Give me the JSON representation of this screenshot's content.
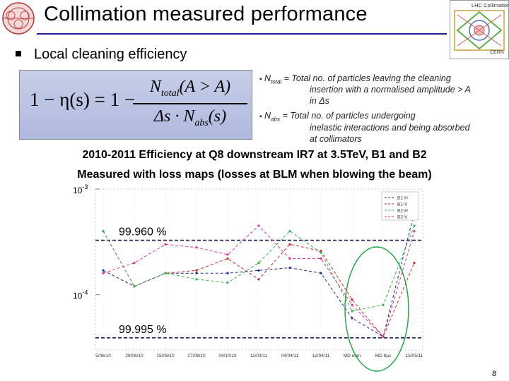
{
  "header": {
    "title": "Collimation measured performance",
    "logo_right_lines": [
      "LHC Collimation",
      "CERN"
    ]
  },
  "bullet": {
    "text": "Local cleaning efficiency"
  },
  "formula": {
    "lhs": "1 − η(s) = 1 −",
    "numerator": "N_total(A > A)",
    "denominator": "Δs · N_abs(s)"
  },
  "definitions": [
    {
      "symbol": "N",
      "sub": "total",
      "lines": [
        " = Total no. of particles leaving the cleaning",
        "insertion with a normalised amplitude > A",
        "in Δs"
      ]
    },
    {
      "symbol": "N",
      "sub": "abs",
      "lines": [
        " = Total no. of particles undergoing",
        "inelastic interactions and being absorbed",
        "at collimators"
      ]
    }
  ],
  "headings": [
    "2010-2011 Efficiency at Q8 downstream IR7 at 3.5TeV, B1 and B2",
    "Measured with loss maps (losses at BLM when blowing the beam)"
  ],
  "page_number": "8",
  "chart_data": {
    "type": "line",
    "yscale": "log",
    "yticks": [
      {
        "label": "10",
        "exp": "-3",
        "value": 0.001
      },
      {
        "label": "10",
        "exp": "-4",
        "value": 0.0001
      }
    ],
    "ylim": [
      3e-05,
      0.001
    ],
    "categories": [
      "5/06/10",
      "28/06/10",
      "15/08/10",
      "27/08/10",
      "04/10/10",
      "11/03/11",
      "04/04/11",
      "12/04/11",
      "MD nom",
      "MD 8μs",
      "15/05/11"
    ],
    "thresholds": [
      {
        "label": "99.960 %",
        "value": 0.0004
      },
      {
        "label": "99.995 %",
        "value": 5e-05
      }
    ],
    "series": [
      {
        "name": "B1-H",
        "color": "#1e2d8f",
        "values": [
          0.00017,
          0.00012,
          0.00016,
          0.00016,
          0.00016,
          0.00017,
          0.00018,
          0.00016,
          6e-05,
          4e-05,
          0.0006
        ]
      },
      {
        "name": "B1-V",
        "color": "#d2262f",
        "values": [
          0.0004,
          0.00012,
          0.00016,
          0.00017,
          0.00022,
          0.00014,
          0.0003,
          0.00026,
          9e-05,
          4e-05,
          0.0002
        ]
      },
      {
        "name": "B2-H",
        "color": "#32b54a",
        "values": [
          0.0004,
          0.00012,
          0.00016,
          0.00014,
          0.00013,
          0.0002,
          0.0004,
          0.00025,
          7e-05,
          8e-05,
          0.00045
        ]
      },
      {
        "name": "B2-V",
        "color": "#e0308f",
        "values": [
          0.00016,
          0.0002,
          0.0003,
          0.00028,
          0.00024,
          0.00045,
          0.00022,
          0.00022,
          8e-05,
          4e-05,
          0.0004
        ]
      }
    ]
  }
}
